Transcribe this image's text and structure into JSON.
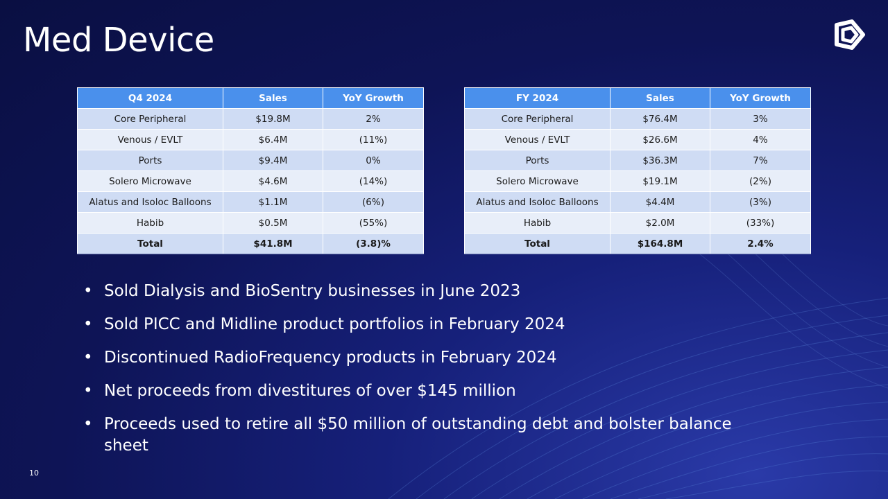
{
  "slide": {
    "title": "Med Device",
    "page_number": "10"
  },
  "q4_table": {
    "headers": [
      "Q4 2024",
      "Sales",
      "YoY Growth"
    ],
    "rows": [
      [
        "Core Peripheral",
        "$19.8M",
        "2%"
      ],
      [
        "Venous / EVLT",
        "$6.4M",
        "(11%)"
      ],
      [
        "Ports",
        "$9.4M",
        "0%"
      ],
      [
        "Solero Microwave",
        "$4.6M",
        "(14%)"
      ],
      [
        "Alatus and Isoloc Balloons",
        "$1.1M",
        "(6%)"
      ],
      [
        "Habib",
        "$0.5M",
        "(55%)"
      ],
      [
        "Total",
        "$41.8M",
        "(3.8)%"
      ]
    ]
  },
  "fy_table": {
    "headers": [
      "FY 2024",
      "Sales",
      "YoY Growth"
    ],
    "rows": [
      [
        "Core Peripheral",
        "$76.4M",
        "3%"
      ],
      [
        "Venous / EVLT",
        "$26.6M",
        "4%"
      ],
      [
        "Ports",
        "$36.3M",
        "7%"
      ],
      [
        "Solero Microwave",
        "$19.1M",
        "(2%)"
      ],
      [
        "Alatus and Isoloc Balloons",
        "$4.4M",
        "(3%)"
      ],
      [
        "Habib",
        "$2.0M",
        "(33%)"
      ],
      [
        "Total",
        "$164.8M",
        "2.4%"
      ]
    ]
  },
  "bullets": [
    "Sold Dialysis and BioSentry businesses in June 2023",
    "Sold PICC and Midline product portfolios in February 2024",
    "Discontinued RadioFrequency products in February 2024",
    "Net proceeds from divestitures of over $145 million",
    "Proceeds used to retire all $50 million of outstanding debt and bolster balance sheet"
  ],
  "bullet_glyph": "•",
  "colors": {
    "background": "#0e1456",
    "header_fill": "#4a90ec",
    "row_fill_a": "#cfdcf4",
    "row_fill_b": "#e8eef9",
    "text": "#ffffff"
  },
  "icons": {
    "logo": "brand-logo-icon"
  }
}
